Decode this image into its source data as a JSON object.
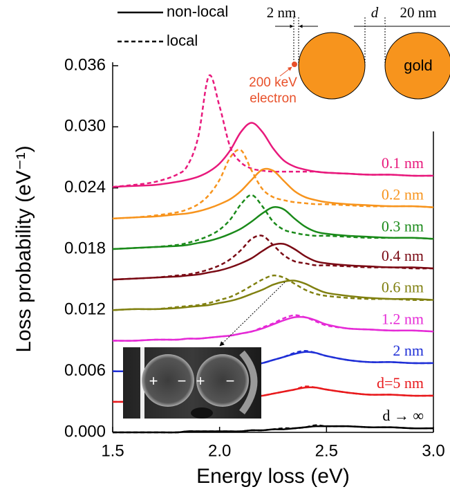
{
  "chart_data": {
    "type": "line",
    "xlabel": "Energy loss (eV)",
    "ylabel": "Loss probability (eV⁻¹)",
    "xlim": [
      1.5,
      3.0
    ],
    "ylim": [
      0,
      0.036
    ],
    "xticks": [
      {
        "value": 1.5,
        "label": "1.5"
      },
      {
        "value": 2.0,
        "label": "2.0"
      },
      {
        "value": 2.5,
        "label": "2.5"
      },
      {
        "value": 3.0,
        "label": "3.0"
      }
    ],
    "yticks": [
      {
        "value": 0,
        "label": "0.000"
      },
      {
        "value": 0.006,
        "label": "0.006"
      },
      {
        "value": 0.012,
        "label": "0.012"
      },
      {
        "value": 0.018,
        "label": "0.018"
      },
      {
        "value": 0.024,
        "label": "0.024"
      },
      {
        "value": 0.03,
        "label": "0.030"
      },
      {
        "value": 0.036,
        "label": "0.036"
      }
    ],
    "legend": [
      {
        "label": "non-local",
        "dash": "solid"
      },
      {
        "label": "local",
        "dash": "dashed"
      }
    ],
    "x": [
      1.5,
      1.6,
      1.7,
      1.8,
      1.85,
      1.9,
      1.95,
      2.0,
      2.05,
      2.1,
      2.15,
      2.2,
      2.25,
      2.3,
      2.35,
      2.4,
      2.45,
      2.5,
      2.6,
      2.7,
      2.8,
      2.9,
      3.0
    ],
    "series": [
      {
        "name": "0.1 nm",
        "color": "#e8197c",
        "values": [
          0.0241,
          0.0242,
          0.0243,
          0.0246,
          0.0248,
          0.0251,
          0.0256,
          0.0264,
          0.0277,
          0.0295,
          0.0304,
          0.0295,
          0.0279,
          0.0267,
          0.0261,
          0.0258,
          0.0256,
          0.0255,
          0.0254,
          0.0253,
          0.0253,
          0.0252,
          0.0252
        ],
        "local_values": [
          0.0241,
          0.0243,
          0.0246,
          0.0253,
          0.0262,
          0.029,
          0.035,
          0.032,
          0.028,
          0.0265,
          0.0259,
          0.0257,
          0.0256,
          0.0256,
          0.0256,
          0.0256,
          0.0256,
          0.0255,
          0.0254,
          0.0253,
          0.0253,
          0.0252,
          0.0252
        ]
      },
      {
        "name": "0.2 nm",
        "color": "#f7941d",
        "values": [
          0.021,
          0.0211,
          0.0212,
          0.0214,
          0.0215,
          0.0217,
          0.022,
          0.0224,
          0.0229,
          0.0237,
          0.0248,
          0.0258,
          0.0257,
          0.0247,
          0.0237,
          0.0231,
          0.0228,
          0.0226,
          0.0224,
          0.0223,
          0.0222,
          0.0222,
          0.0221
        ],
        "local_values": [
          0.021,
          0.0211,
          0.0213,
          0.0216,
          0.0219,
          0.0224,
          0.0233,
          0.0248,
          0.027,
          0.0277,
          0.0257,
          0.0239,
          0.0231,
          0.0228,
          0.0226,
          0.0225,
          0.0224,
          0.0224,
          0.0223,
          0.0222,
          0.0222,
          0.0222,
          0.0221
        ]
      },
      {
        "name": "0.3 nm",
        "color": "#1a8a1a",
        "values": [
          0.018,
          0.0181,
          0.0182,
          0.0183,
          0.0184,
          0.0186,
          0.0188,
          0.0191,
          0.0195,
          0.02,
          0.0207,
          0.0215,
          0.0221,
          0.0219,
          0.021,
          0.0202,
          0.0197,
          0.0195,
          0.0193,
          0.0192,
          0.0191,
          0.0191,
          0.019
        ],
        "local_values": [
          0.018,
          0.0181,
          0.0182,
          0.0184,
          0.0186,
          0.0189,
          0.0193,
          0.0199,
          0.0209,
          0.0224,
          0.0233,
          0.0222,
          0.0207,
          0.0199,
          0.0196,
          0.0194,
          0.0193,
          0.0193,
          0.0192,
          0.0191,
          0.0191,
          0.0191,
          0.019
        ]
      },
      {
        "name": "0.4 nm",
        "color": "#7a0a14",
        "values": [
          0.015,
          0.0151,
          0.0152,
          0.0153,
          0.0154,
          0.0155,
          0.0157,
          0.0159,
          0.0162,
          0.0166,
          0.0171,
          0.0178,
          0.0184,
          0.0185,
          0.018,
          0.0173,
          0.0168,
          0.0166,
          0.0164,
          0.0163,
          0.0162,
          0.0162,
          0.0161
        ],
        "local_values": [
          0.015,
          0.0151,
          0.0152,
          0.0154,
          0.0155,
          0.0157,
          0.016,
          0.0164,
          0.017,
          0.0179,
          0.019,
          0.0193,
          0.0184,
          0.0174,
          0.0168,
          0.0166,
          0.0164,
          0.0164,
          0.0163,
          0.0162,
          0.0162,
          0.0161,
          0.0161
        ]
      },
      {
        "name": "0.6 nm",
        "color": "#808010",
        "values": [
          0.012,
          0.0121,
          0.0121,
          0.0122,
          0.0123,
          0.0124,
          0.0125,
          0.0127,
          0.0129,
          0.0132,
          0.0136,
          0.014,
          0.0145,
          0.0148,
          0.0149,
          0.0146,
          0.0141,
          0.0137,
          0.0134,
          0.0132,
          0.0131,
          0.0131,
          0.013
        ],
        "local_values": [
          0.012,
          0.0121,
          0.0121,
          0.0123,
          0.0124,
          0.0125,
          0.0127,
          0.013,
          0.0133,
          0.0138,
          0.0144,
          0.015,
          0.0154,
          0.0152,
          0.0146,
          0.014,
          0.0136,
          0.0134,
          0.0132,
          0.0131,
          0.0131,
          0.013,
          0.013
        ]
      },
      {
        "name": "1.2 nm",
        "color": "#e52ad6",
        "values": [
          0.009,
          0.009,
          0.0091,
          0.0091,
          0.0092,
          0.0092,
          0.0093,
          0.0094,
          0.0095,
          0.0097,
          0.0099,
          0.0102,
          0.0106,
          0.011,
          0.0113,
          0.0113,
          0.011,
          0.0106,
          0.0102,
          0.0101,
          0.01,
          0.01,
          0.0099
        ],
        "local_values": [
          0.009,
          0.009,
          0.0091,
          0.0091,
          0.0092,
          0.0092,
          0.0093,
          0.0094,
          0.0095,
          0.0097,
          0.0099,
          0.0103,
          0.0107,
          0.0112,
          0.0115,
          0.0113,
          0.0109,
          0.0105,
          0.0102,
          0.0101,
          0.01,
          0.01,
          0.0099
        ]
      },
      {
        "name": "2 nm",
        "color": "#1f2fd6",
        "values": [
          0.006,
          0.006,
          0.0061,
          0.0061,
          0.0061,
          0.0062,
          0.0062,
          0.0063,
          0.0064,
          0.0065,
          0.0066,
          0.0068,
          0.0071,
          0.0074,
          0.0077,
          0.0079,
          0.0078,
          0.0075,
          0.0071,
          0.0069,
          0.0069,
          0.0068,
          0.0068
        ],
        "local_values": [
          0.006,
          0.006,
          0.0061,
          0.0061,
          0.0061,
          0.0062,
          0.0062,
          0.0063,
          0.0064,
          0.0065,
          0.0066,
          0.0068,
          0.0071,
          0.0074,
          0.0078,
          0.008,
          0.0078,
          0.0075,
          0.0071,
          0.0069,
          0.0069,
          0.0068,
          0.0068
        ]
      },
      {
        "name": "d=5 nm",
        "color": "#e8191c",
        "values": [
          0.003,
          0.003,
          0.003,
          0.0031,
          0.0031,
          0.0031,
          0.0032,
          0.0032,
          0.0033,
          0.0034,
          0.0035,
          0.0036,
          0.0038,
          0.004,
          0.0042,
          0.0044,
          0.0044,
          0.0042,
          0.0039,
          0.0037,
          0.0037,
          0.0036,
          0.0036
        ],
        "local_values": [
          0.003,
          0.003,
          0.003,
          0.0031,
          0.0031,
          0.0031,
          0.0032,
          0.0032,
          0.0033,
          0.0034,
          0.0035,
          0.0036,
          0.0038,
          0.004,
          0.0042,
          0.0045,
          0.0044,
          0.0042,
          0.0039,
          0.0037,
          0.0037,
          0.0036,
          0.0036
        ]
      },
      {
        "name": "d → ∞",
        "color": "#000000",
        "values": [
          0,
          0,
          0,
          0,
          0.0001,
          0.0001,
          0.0001,
          0.0001,
          0.0001,
          0.0001,
          0.0002,
          0.0002,
          0.0003,
          0.0003,
          0.0004,
          0.0005,
          0.0006,
          0.0006,
          0.0006,
          0.0005,
          0.0005,
          0.0004,
          0.0004
        ],
        "local_values": [
          0,
          0,
          0,
          0,
          0.0001,
          0.0001,
          0.0001,
          0.0001,
          0.0001,
          0.0001,
          0.0002,
          0.0002,
          0.0003,
          0.0004,
          0.0004,
          0.0005,
          0.0007,
          0.0006,
          0.0006,
          0.0005,
          0.0005,
          0.0004,
          0.0004
        ]
      }
    ],
    "schematic": {
      "gap_size": "2 nm",
      "separation": "d",
      "diameter": "20 nm",
      "material": "gold",
      "electron": [
        "200 keV",
        "electron"
      ]
    },
    "inset": {
      "charges": [
        "+",
        "−",
        "+",
        "−"
      ]
    }
  }
}
